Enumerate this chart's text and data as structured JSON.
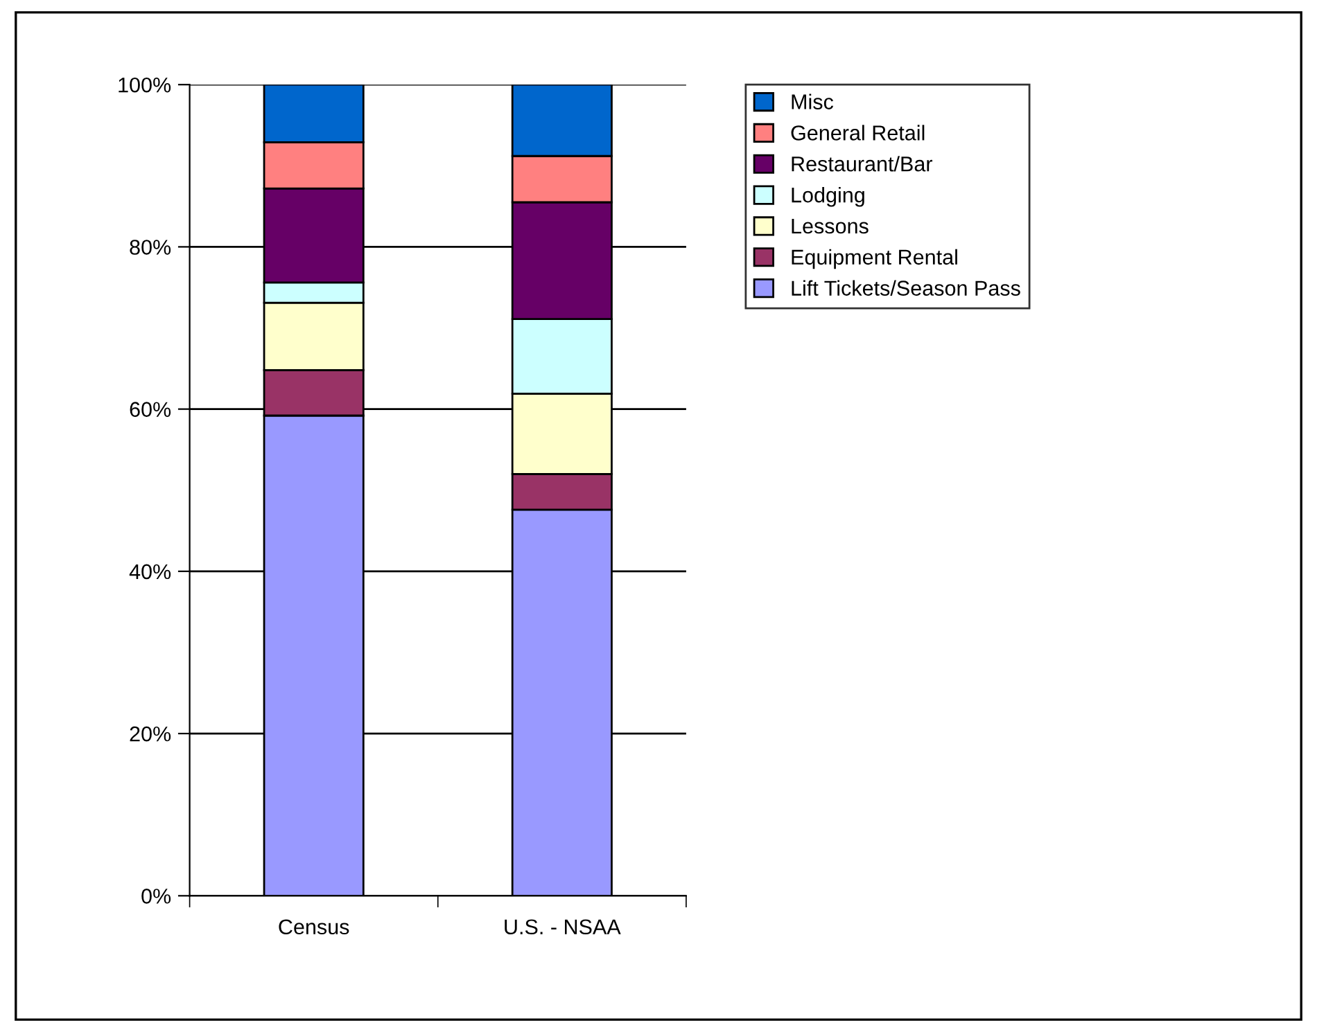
{
  "chart_data": {
    "type": "bar",
    "stacked": true,
    "categories": [
      "Census",
      "U.S. - NSAA"
    ],
    "series": [
      {
        "name": "Lift Tickets/Season Pass",
        "color": "#9999ff",
        "values": [
          59.2,
          47.6
        ]
      },
      {
        "name": "Equipment Rental",
        "color": "#993366",
        "values": [
          5.6,
          4.4
        ]
      },
      {
        "name": "Lessons",
        "color": "#ffffcc",
        "values": [
          8.3,
          9.9
        ]
      },
      {
        "name": "Lodging",
        "color": "#ccffff",
        "values": [
          2.5,
          9.2
        ]
      },
      {
        "name": "Restaurant/Bar",
        "color": "#660066",
        "values": [
          11.6,
          14.4
        ]
      },
      {
        "name": "General Retail",
        "color": "#ff8080",
        "values": [
          5.7,
          5.7
        ]
      },
      {
        "name": "Misc",
        "color": "#0066cc",
        "values": [
          7.1,
          8.8
        ]
      }
    ],
    "ylim": [
      0,
      100
    ],
    "yticks": [
      {
        "value": 0,
        "label": "0%"
      },
      {
        "value": 20,
        "label": "20%"
      },
      {
        "value": 40,
        "label": "40%"
      },
      {
        "value": 60,
        "label": "60%"
      },
      {
        "value": 80,
        "label": "80%"
      },
      {
        "value": 100,
        "label": "100%"
      }
    ],
    "grid": "y",
    "legend": "right"
  }
}
